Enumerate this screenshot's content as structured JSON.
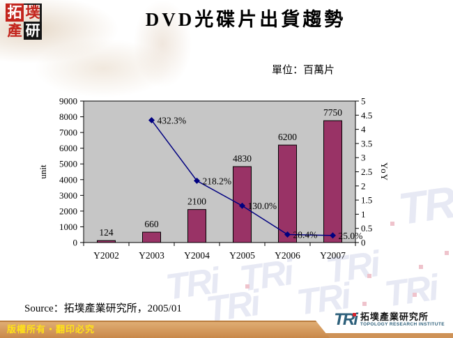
{
  "page": {
    "title": "DVD光碟片出貨趨勢",
    "unit_note": "單位：百萬片",
    "source_note": "Source：拓墣產業研究所，2005/01",
    "copyright": "版權所有‧翻印必究"
  },
  "corner_logo": {
    "chars": [
      "拓",
      "墣",
      "產",
      "研"
    ]
  },
  "footer_logo": {
    "acronym": "TRi",
    "name_zh": "拓墣產業研究所",
    "name_en": "TOPOLOGY RESEARCH INSTITUTE"
  },
  "watermark": {
    "text": "TRi"
  },
  "chart_data": {
    "type": "bar+line combo",
    "categories": [
      "Y2002",
      "Y2003",
      "Y2004",
      "Y2005",
      "Y2006",
      "Y2007"
    ],
    "series": [
      {
        "name": "unit",
        "type": "bar",
        "axis": "left",
        "values": [
          124,
          660,
          2100,
          4830,
          6200,
          7750
        ],
        "labels": [
          "124",
          "660",
          "2100",
          "4830",
          "6200",
          "7750"
        ],
        "color": "#993366"
      },
      {
        "name": "YoY",
        "type": "line",
        "axis": "right",
        "values": [
          null,
          4.323,
          2.182,
          1.3,
          0.284,
          0.25
        ],
        "labels": [
          null,
          "432.3%",
          "218.2%",
          "130.0%",
          "28.4%",
          "25.0%"
        ],
        "color": "#000080"
      }
    ],
    "left_axis": {
      "label": "unit",
      "min": 0,
      "max": 9000,
      "step": 1000
    },
    "right_axis": {
      "label": "YoY",
      "min": 0,
      "max": 5,
      "step": 0.5
    },
    "plot_bg": "#c6c6c6",
    "grid": false,
    "legend": false
  }
}
